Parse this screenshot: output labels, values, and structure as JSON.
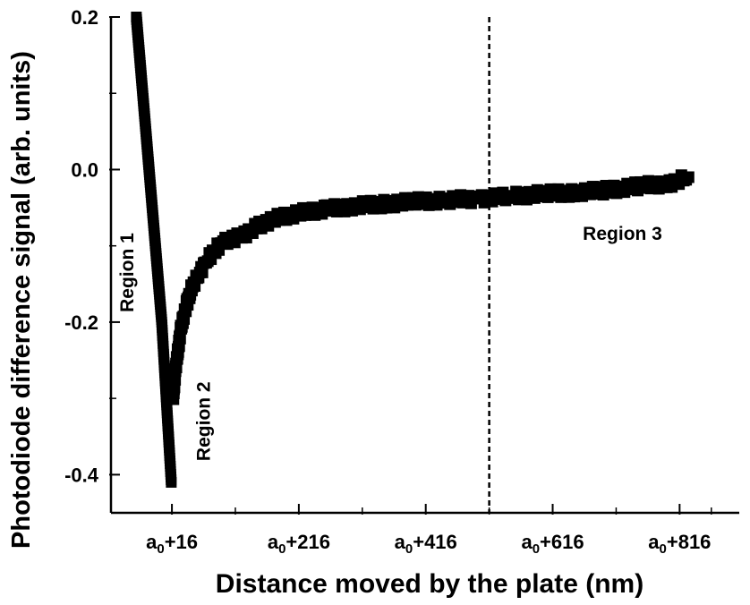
{
  "chart_data": {
    "type": "scatter",
    "title": "",
    "xlabel": "Distance moved by the plate (nm)",
    "ylabel": "Photodiode difference signal (arb. units)",
    "xlim": [
      -80,
      910
    ],
    "ylim": [
      -0.45,
      0.2
    ],
    "x_tick_values": [
      16,
      216,
      416,
      616,
      816
    ],
    "x_tick_labels": [
      {
        "base": "a",
        "sub": "0",
        "suffix": "+16"
      },
      {
        "base": "a",
        "sub": "0",
        "suffix": "+216"
      },
      {
        "base": "a",
        "sub": "0",
        "suffix": "+416"
      },
      {
        "base": "a",
        "sub": "0",
        "suffix": "+616"
      },
      {
        "base": "a",
        "sub": "0",
        "suffix": "+816"
      }
    ],
    "y_tick_values": [
      0.2,
      0.0,
      -0.2,
      -0.4
    ],
    "y_tick_labels": [
      "0.2",
      "0.0",
      "-0.2",
      "-0.4"
    ],
    "grid": false,
    "dashed_vertical_line_x": 516,
    "annotations": [
      {
        "text": "Region 1",
        "x": -45,
        "y": -0.135,
        "rotation": -90
      },
      {
        "text": "Region 2",
        "x": 76,
        "y": -0.33,
        "rotation": -90
      },
      {
        "text": "Region 3",
        "x": 726,
        "y": -0.092,
        "rotation": 0
      }
    ],
    "series": [
      {
        "segment": "region1",
        "x": [
          -40,
          -35,
          -30,
          -25,
          -20,
          -15,
          -10,
          -5,
          0,
          5,
          10,
          15
        ],
        "y": [
          0.2,
          0.15,
          0.1,
          0.05,
          0.0,
          -0.05,
          -0.1,
          -0.15,
          -0.2,
          -0.27,
          -0.34,
          -0.41
        ]
      },
      {
        "segment": "region2_3",
        "x": [
          18,
          22,
          26,
          30,
          35,
          40,
          45,
          50,
          60,
          70,
          80,
          90,
          100,
          115,
          130,
          150,
          175,
          200,
          230,
          260,
          300,
          350,
          400,
          450,
          500,
          550,
          600,
          650,
          700,
          750,
          800,
          830
        ],
        "y": [
          -0.3,
          -0.26,
          -0.235,
          -0.21,
          -0.19,
          -0.175,
          -0.16,
          -0.15,
          -0.135,
          -0.12,
          -0.11,
          -0.1,
          -0.095,
          -0.09,
          -0.085,
          -0.075,
          -0.065,
          -0.06,
          -0.055,
          -0.052,
          -0.048,
          -0.045,
          -0.042,
          -0.04,
          -0.038,
          -0.035,
          -0.032,
          -0.03,
          -0.027,
          -0.022,
          -0.018,
          -0.01
        ]
      }
    ]
  }
}
